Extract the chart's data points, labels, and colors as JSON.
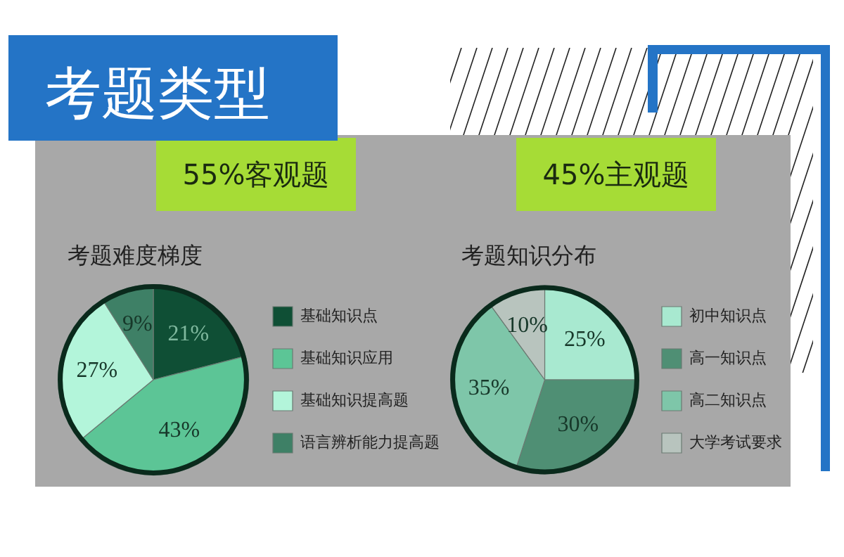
{
  "chart_data": [
    {
      "type": "pie",
      "title": "考题难度梯度",
      "annotations": [
        "考题类型",
        "55%客观题"
      ],
      "categories": [
        "基础知识点",
        "基础知识应用",
        "基础知识提高题",
        "语言辨析能力提高题"
      ],
      "values": [
        21,
        43,
        27,
        9
      ],
      "value_labels": [
        "21%",
        "43%",
        "27%",
        "9%"
      ],
      "colors": [
        "#0f4f35",
        "#5cc596",
        "#b3f5da",
        "#3e8066"
      ],
      "legend": "right"
    },
    {
      "type": "pie",
      "title": "考题知识分布",
      "annotations": [
        "45%主观题"
      ],
      "categories": [
        "初中知识点",
        "高一知识点",
        "高二知识点",
        "大学考试要求"
      ],
      "values": [
        25,
        30,
        35,
        10
      ],
      "value_labels": [
        "25%",
        "30%",
        "35%",
        "10%"
      ],
      "colors": [
        "#a8e9d0",
        "#4f8f74",
        "#7ec6a9",
        "#b8c4be"
      ],
      "legend": "right"
    }
  ]
}
